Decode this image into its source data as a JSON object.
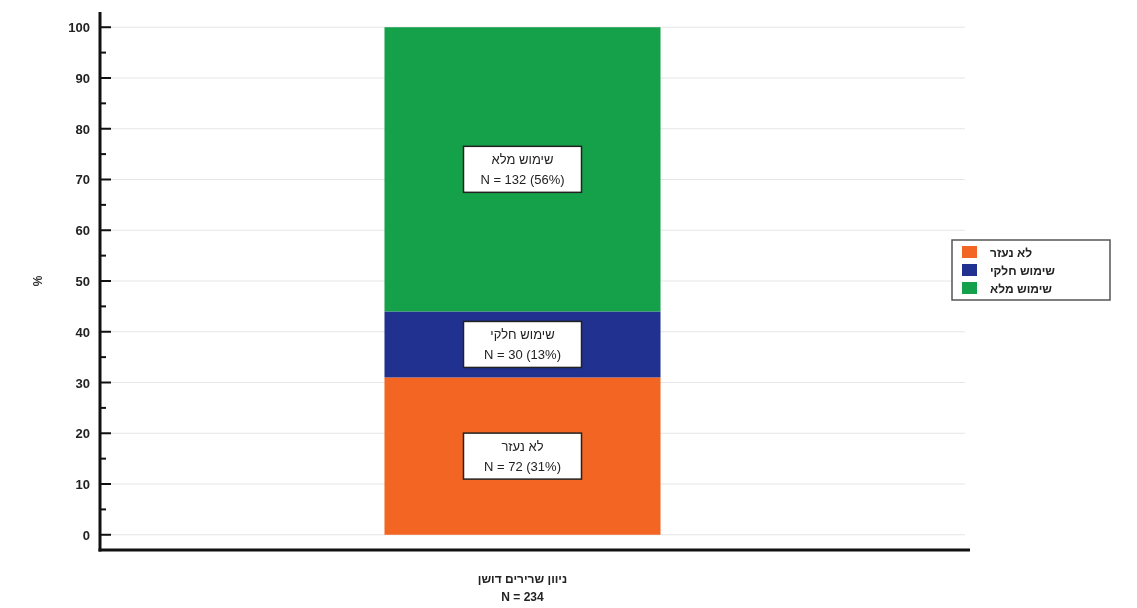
{
  "chart_data": {
    "type": "bar",
    "stacked": true,
    "categories": [
      "ניוון שרירים דושן"
    ],
    "series": [
      {
        "name": "לא נעזר",
        "color": "#f26522",
        "values": [
          31
        ],
        "value_labels": [
          "N = 72 (31%)"
        ]
      },
      {
        "name": "שימוש חלקי",
        "color": "#21318f",
        "values": [
          13
        ],
        "value_labels": [
          "N = 30 (13%)"
        ]
      },
      {
        "name": "שימוש מלא",
        "color": "#15a04a",
        "values": [
          56
        ],
        "value_labels": [
          "N = 132 (56%)"
        ]
      }
    ],
    "ylabel": "%",
    "ylim": [
      -3,
      103
    ],
    "yticks": [
      0,
      10,
      20,
      30,
      40,
      50,
      60,
      70,
      80,
      90,
      100
    ],
    "grid": "y",
    "legend": "right",
    "annotations": [
      "N = 234"
    ]
  }
}
